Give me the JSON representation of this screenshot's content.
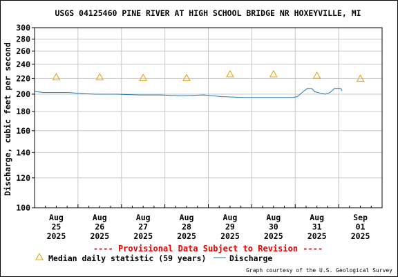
{
  "chart_data": {
    "type": "line",
    "title": "USGS 04125460 PINE RIVER AT HIGH SCHOOL BRIDGE NR HOXEYVILLE, MI",
    "ylabel": "Discharge, cubic feet per second",
    "xlabel": "",
    "y_scale": "log",
    "ylim": [
      100,
      300
    ],
    "y_ticks": [
      "100",
      "120",
      "140",
      "160",
      "180",
      "200",
      "220",
      "240",
      "260",
      "280",
      "300"
    ],
    "y_tick_values": [
      100,
      120,
      140,
      160,
      180,
      200,
      220,
      240,
      260,
      280,
      300
    ],
    "x_ticks": [
      {
        "month": "Aug",
        "day": "25",
        "year": "2025"
      },
      {
        "month": "Aug",
        "day": "26",
        "year": "2025"
      },
      {
        "month": "Aug",
        "day": "27",
        "year": "2025"
      },
      {
        "month": "Aug",
        "day": "28",
        "year": "2025"
      },
      {
        "month": "Aug",
        "day": "29",
        "year": "2025"
      },
      {
        "month": "Aug",
        "day": "30",
        "year": "2025"
      },
      {
        "month": "Aug",
        "day": "31",
        "year": "2025"
      },
      {
        "month": "Sep",
        "day": "01",
        "year": "2025"
      }
    ],
    "grid": true,
    "series": [
      {
        "name": "Median daily statistic (59 years)",
        "kind": "triangle-marker",
        "color": "#e8a000",
        "points": [
          {
            "day": 25.5,
            "value": 222
          },
          {
            "day": 26.5,
            "value": 222
          },
          {
            "day": 27.5,
            "value": 221
          },
          {
            "day": 28.5,
            "value": 221
          },
          {
            "day": 29.5,
            "value": 226
          },
          {
            "day": 30.5,
            "value": 226
          },
          {
            "day": 31.5,
            "value": 224
          },
          {
            "day": 32.5,
            "value": 220
          }
        ]
      },
      {
        "name": "Discharge",
        "kind": "line",
        "color": "#1f77b4",
        "points": [
          {
            "day": 25.0,
            "value": 204
          },
          {
            "day": 25.05,
            "value": 203
          },
          {
            "day": 25.2,
            "value": 202
          },
          {
            "day": 25.8,
            "value": 202
          },
          {
            "day": 26.0,
            "value": 201
          },
          {
            "day": 26.4,
            "value": 200
          },
          {
            "day": 26.9,
            "value": 200
          },
          {
            "day": 27.4,
            "value": 199
          },
          {
            "day": 27.9,
            "value": 199
          },
          {
            "day": 28.4,
            "value": 198
          },
          {
            "day": 28.9,
            "value": 199
          },
          {
            "day": 29.3,
            "value": 197
          },
          {
            "day": 29.8,
            "value": 196
          },
          {
            "day": 30.4,
            "value": 196
          },
          {
            "day": 30.95,
            "value": 196
          },
          {
            "day": 31.05,
            "value": 197
          },
          {
            "day": 31.18,
            "value": 203
          },
          {
            "day": 31.28,
            "value": 207
          },
          {
            "day": 31.38,
            "value": 207
          },
          {
            "day": 31.45,
            "value": 203
          },
          {
            "day": 31.6,
            "value": 201
          },
          {
            "day": 31.7,
            "value": 200
          },
          {
            "day": 31.8,
            "value": 202
          },
          {
            "day": 31.9,
            "value": 207
          },
          {
            "day": 32.05,
            "value": 207
          },
          {
            "day": 32.08,
            "value": 204
          }
        ]
      }
    ]
  },
  "provisional_note": "---- Provisional Data Subject to Revision ----",
  "legend": {
    "median_label": "Median daily statistic (59 years)",
    "discharge_label": "Discharge"
  },
  "credit": "Graph courtesy of the U.S. Geological Survey",
  "colors": {
    "provisional": "#e00000",
    "median_marker": "#e8a000",
    "discharge_line": "#1f77b4",
    "grid": "#c8c8c8"
  }
}
